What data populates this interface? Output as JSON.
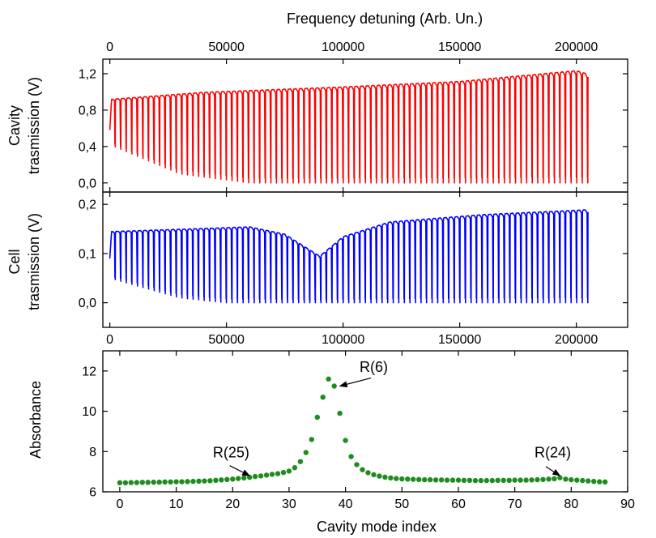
{
  "chart_data": [
    {
      "id": "cavity",
      "type": "line",
      "color": "#ff0000",
      "xlabel": "Frequency detuning (Arb. Un.)",
      "xlim": [
        -3000,
        222000
      ],
      "x_ticks": [
        0,
        50000,
        100000,
        150000,
        200000
      ],
      "x_tick_labels": [
        "0",
        "50000",
        "100000",
        "150000",
        "200000"
      ],
      "ylabel": [
        "Cavity",
        "trasmission (V)"
      ],
      "ylim": [
        -0.1,
        1.36
      ],
      "y_ticks": [
        0.0,
        0.4,
        0.8,
        1.2
      ],
      "y_tick_labels": [
        "0,0",
        "0,4",
        "0,8",
        "1,2"
      ],
      "series": [
        {
          "x_start": 0,
          "x_end": 205000,
          "modes": 86,
          "start_value": 0.58,
          "peak_envelope": {
            "x": [
              0,
              40000,
              100000,
              150000,
              200000,
              205000
            ],
            "y": [
              0.92,
              1.0,
              1.06,
              1.12,
              1.24,
              1.2
            ]
          },
          "dip_envelope": {
            "x": [
              0,
              30000,
              60000,
              100000,
              150000,
              205000
            ],
            "y": [
              0.42,
              0.1,
              0.0,
              0.0,
              0.0,
              0.0
            ]
          }
        }
      ]
    },
    {
      "id": "cell",
      "type": "line",
      "color": "#0000ff",
      "xlabel": "",
      "xlim": [
        -3000,
        222000
      ],
      "x_ticks": [
        0,
        50000,
        100000,
        150000,
        200000
      ],
      "x_tick_labels": [
        "0",
        "50000",
        "100000",
        "150000",
        "200000"
      ],
      "ylabel": [
        "Cell",
        "trasmission (V)"
      ],
      "ylim": [
        -0.05,
        0.225
      ],
      "y_ticks": [
        0.0,
        0.1,
        0.2
      ],
      "y_tick_labels": [
        "0,0",
        "0,1",
        "0,2"
      ],
      "series": [
        {
          "x_start": 0,
          "x_end": 205000,
          "modes": 86,
          "start_value": 0.09,
          "peak_envelope": {
            "x": [
              0,
              60000,
              75000,
              90000,
              100000,
              120000,
              160000,
              205000
            ],
            "y": [
              0.145,
              0.155,
              0.14,
              0.095,
              0.135,
              0.165,
              0.18,
              0.19
            ]
          },
          "dip_envelope": {
            "x": [
              0,
              30000,
              50000,
              205000
            ],
            "y": [
              0.05,
              0.01,
              0.0,
              0.0
            ]
          }
        }
      ]
    },
    {
      "id": "absorbance",
      "type": "scatter",
      "color": "#1e8c1e",
      "xlabel": "Cavity mode index",
      "xlim": [
        -3,
        90
      ],
      "x_ticks": [
        0,
        10,
        20,
        30,
        40,
        50,
        60,
        70,
        80,
        90
      ],
      "x_tick_labels": [
        "0",
        "10",
        "20",
        "30",
        "40",
        "50",
        "60",
        "70",
        "80",
        "90"
      ],
      "ylabel": [
        "Absorbance"
      ],
      "ylim": [
        6,
        13
      ],
      "y_ticks": [
        6,
        8,
        10,
        12
      ],
      "y_tick_labels": [
        "6",
        "8",
        "10",
        "12"
      ],
      "series": [
        {
          "x": [
            0,
            1,
            2,
            3,
            4,
            5,
            6,
            7,
            8,
            9,
            10,
            11,
            12,
            13,
            14,
            15,
            16,
            17,
            18,
            19,
            20,
            21,
            22,
            23,
            24,
            25,
            26,
            27,
            28,
            29,
            30,
            31,
            32,
            33,
            34,
            35,
            36,
            37,
            38,
            39,
            40,
            41,
            42,
            43,
            44,
            45,
            46,
            47,
            48,
            49,
            50,
            51,
            52,
            53,
            54,
            55,
            56,
            57,
            58,
            59,
            60,
            61,
            62,
            63,
            64,
            65,
            66,
            67,
            68,
            69,
            70,
            71,
            72,
            73,
            74,
            75,
            76,
            77,
            78,
            79,
            80,
            81,
            82,
            83,
            84,
            85,
            86
          ],
          "y": [
            6.45,
            6.45,
            6.46,
            6.46,
            6.47,
            6.47,
            6.48,
            6.48,
            6.49,
            6.49,
            6.5,
            6.5,
            6.51,
            6.52,
            6.53,
            6.54,
            6.55,
            6.57,
            6.59,
            6.61,
            6.63,
            6.66,
            6.69,
            6.72,
            6.76,
            6.79,
            6.83,
            6.87,
            6.9,
            6.96,
            7.03,
            7.2,
            7.5,
            7.95,
            8.6,
            9.7,
            10.7,
            11.6,
            11.25,
            9.9,
            8.55,
            7.75,
            7.35,
            7.1,
            6.95,
            6.85,
            6.78,
            6.73,
            6.69,
            6.66,
            6.64,
            6.63,
            6.62,
            6.61,
            6.6,
            6.6,
            6.59,
            6.59,
            6.58,
            6.58,
            6.58,
            6.57,
            6.57,
            6.56,
            6.56,
            6.56,
            6.56,
            6.57,
            6.57,
            6.57,
            6.58,
            6.58,
            6.58,
            6.59,
            6.6,
            6.61,
            6.63,
            6.65,
            6.7,
            6.63,
            6.6,
            6.58,
            6.56,
            6.54,
            6.52,
            6.5,
            6.49
          ]
        }
      ],
      "annotations": [
        {
          "text": "R(25)",
          "label_at": [
            16.5,
            7.7
          ],
          "arrow_from": [
            19.5,
            7.3
          ],
          "arrow_to": [
            23,
            6.8
          ]
        },
        {
          "text": "R(6)",
          "label_at": [
            42.5,
            11.95
          ],
          "arrow_from": [
            44.5,
            11.65
          ],
          "arrow_to": [
            39,
            11.25
          ]
        },
        {
          "text": "R(24)",
          "label_at": [
            73.5,
            7.7
          ],
          "arrow_from": [
            75.5,
            7.25
          ],
          "arrow_to": [
            78,
            6.8
          ]
        }
      ]
    }
  ]
}
